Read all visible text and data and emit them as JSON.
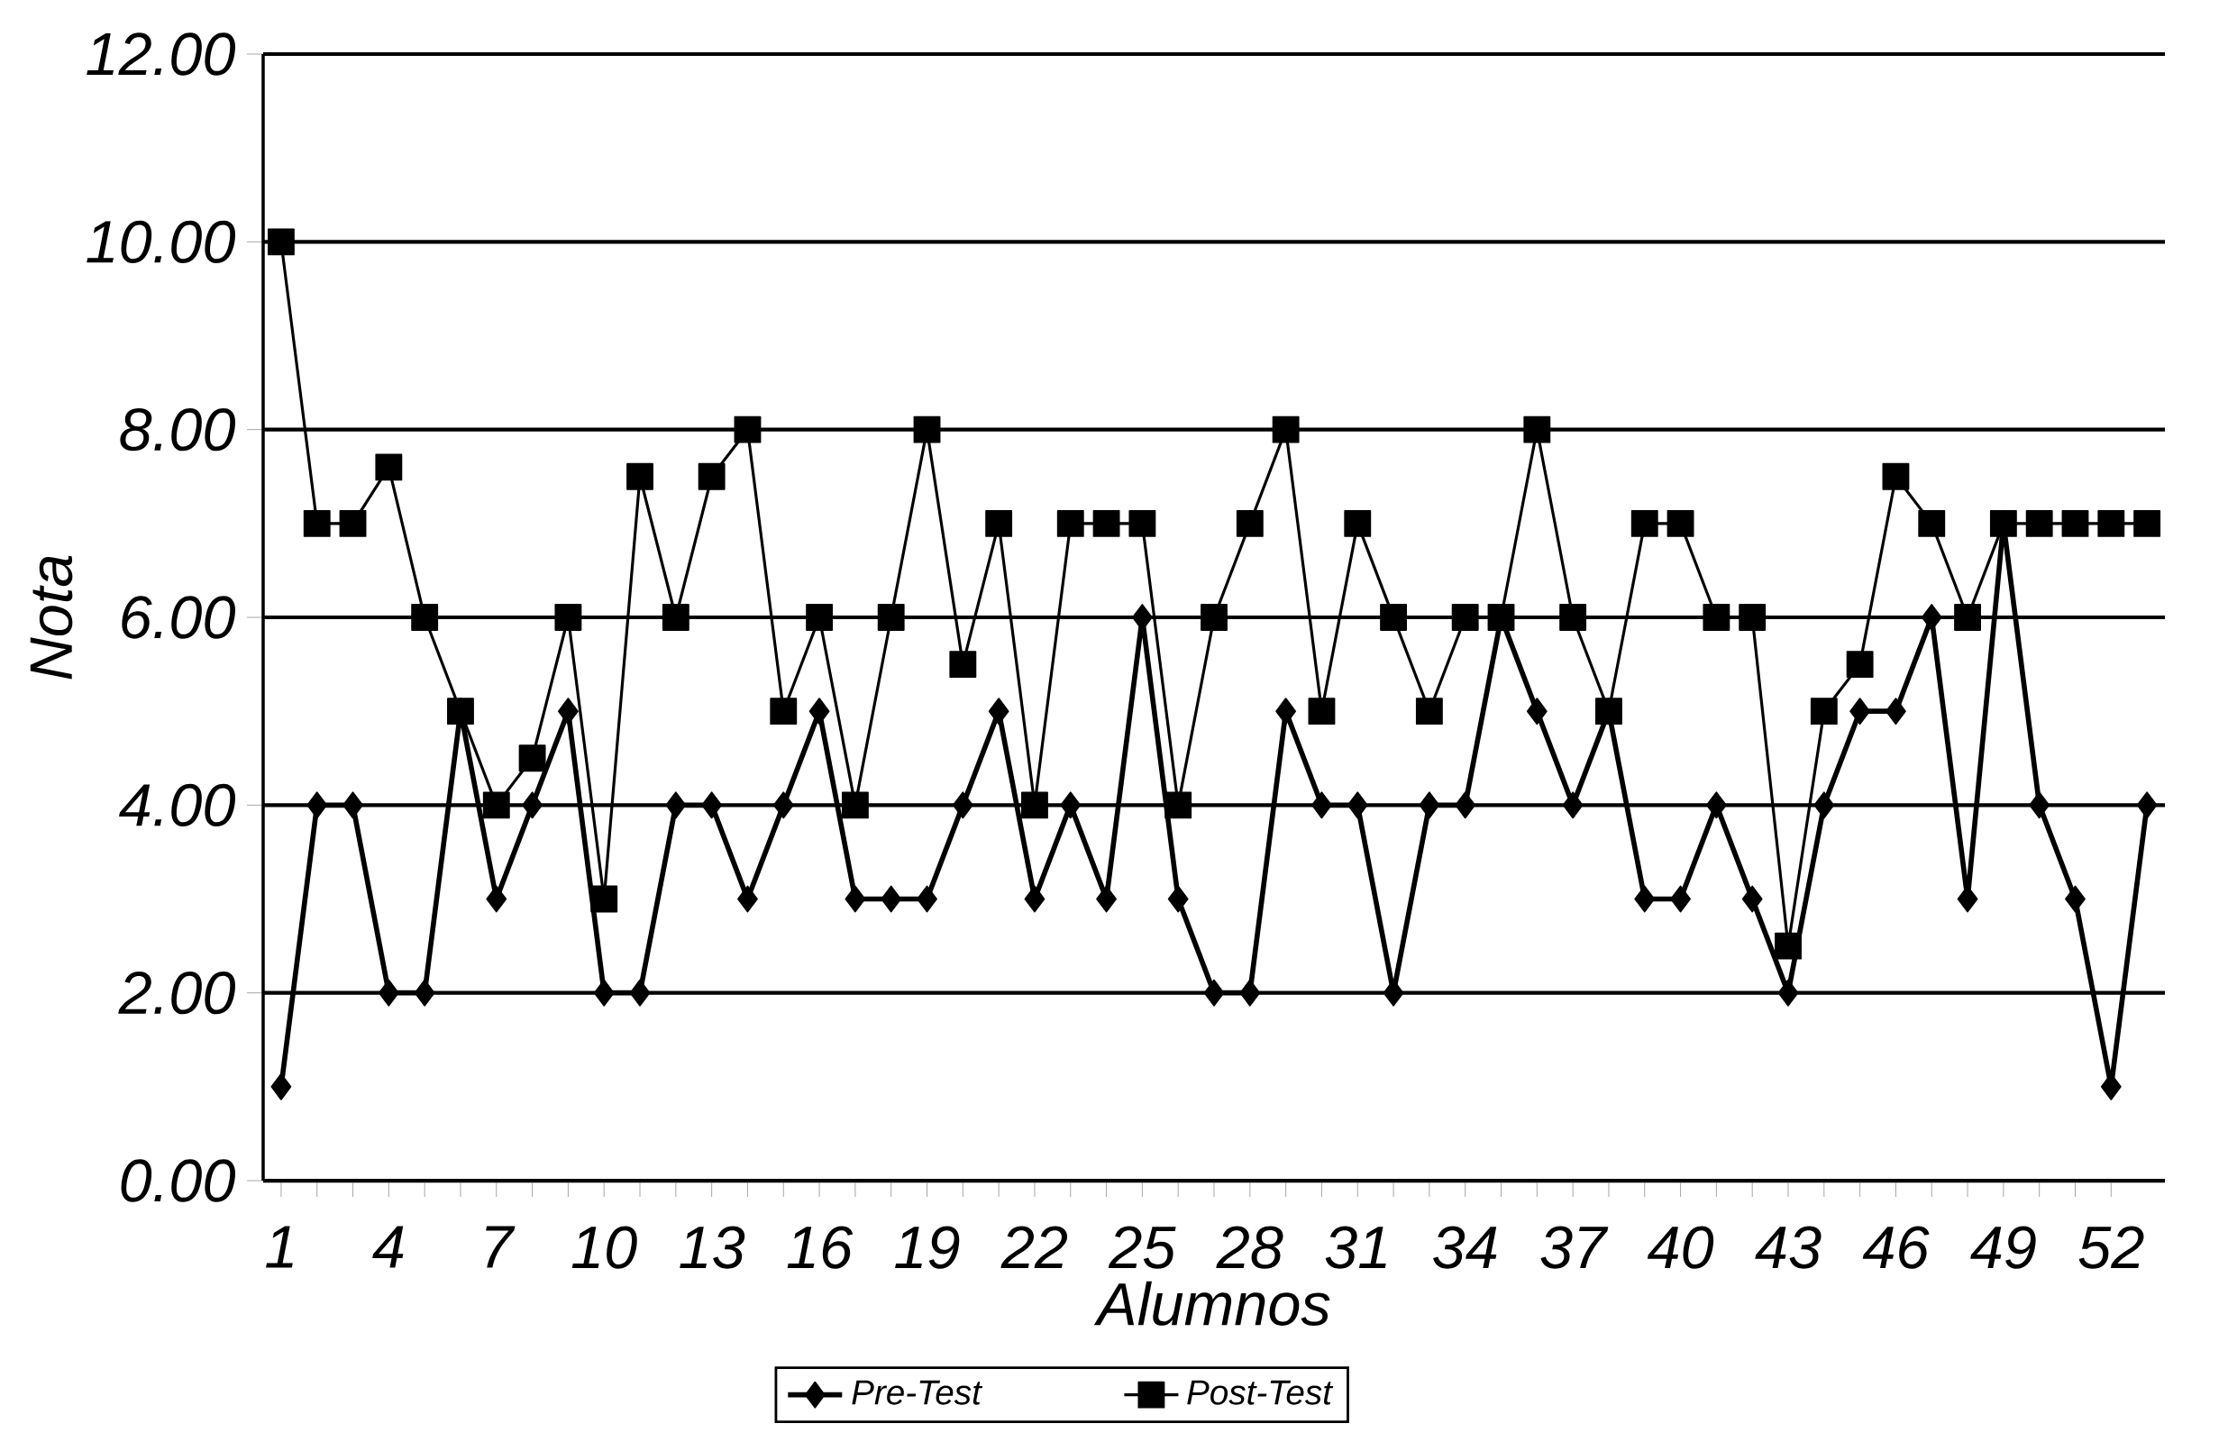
{
  "chart_data": {
    "type": "line",
    "xlabel": "Alumnos",
    "ylabel": "Nota",
    "x": [
      1,
      2,
      3,
      4,
      5,
      6,
      7,
      8,
      9,
      10,
      11,
      12,
      13,
      14,
      15,
      16,
      17,
      18,
      19,
      20,
      21,
      22,
      23,
      24,
      25,
      26,
      27,
      28,
      29,
      30,
      31,
      32,
      33,
      34,
      35,
      36,
      37,
      38,
      39,
      40,
      41,
      42,
      43,
      44,
      45,
      46,
      47,
      48,
      49,
      50,
      51,
      52,
      53
    ],
    "xlim": [
      0.5,
      53.5
    ],
    "xticks": [
      1,
      4,
      7,
      10,
      13,
      16,
      19,
      22,
      25,
      28,
      31,
      34,
      37,
      40,
      43,
      46,
      49,
      52
    ],
    "ylim": [
      0,
      12
    ],
    "yticks": [
      {
        "value": 0,
        "label": "0.00"
      },
      {
        "value": 2,
        "label": "2.00"
      },
      {
        "value": 4,
        "label": "4.00"
      },
      {
        "value": 6,
        "label": "6.00"
      },
      {
        "value": 8,
        "label": "8.00"
      },
      {
        "value": 10,
        "label": "10.00"
      },
      {
        "value": 12,
        "label": "12.00"
      }
    ],
    "grid": "y",
    "legend": "bottom",
    "line_style": "solid",
    "series": [
      {
        "name": "Pre-Test",
        "color": "#000000",
        "marker": "diamond",
        "values": [
          1,
          4,
          4,
          2,
          2,
          5,
          3,
          4,
          5,
          2,
          2,
          4,
          4,
          3,
          4,
          5,
          3,
          3,
          3,
          4,
          5,
          3,
          4,
          3,
          6,
          3,
          2,
          2,
          5,
          4,
          4,
          2,
          4,
          4,
          6,
          5,
          4,
          5,
          3,
          3,
          4,
          3,
          2,
          4,
          5,
          5,
          6,
          3,
          7,
          4,
          3,
          1,
          4
        ]
      },
      {
        "name": "Post-Test",
        "color": "#000000",
        "marker": "square",
        "values": [
          10,
          7,
          7,
          7.6,
          6,
          5,
          4,
          4.5,
          6,
          3,
          7.5,
          6,
          7.5,
          8,
          5,
          6,
          4,
          6,
          8,
          5.5,
          7,
          4,
          7,
          7,
          7,
          4,
          6,
          7,
          8,
          5,
          7,
          6,
          5,
          6,
          6,
          8,
          6,
          5,
          7,
          7,
          6,
          6,
          2.5,
          5,
          5.5,
          7.5,
          7,
          6,
          7,
          7,
          7,
          7,
          7
        ]
      }
    ]
  }
}
